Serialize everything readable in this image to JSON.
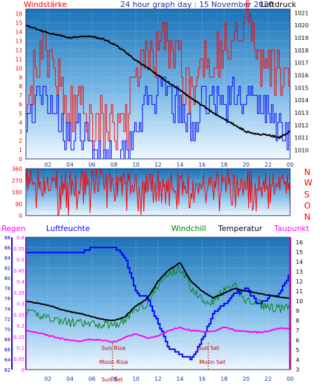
{
  "chart_data": [
    {
      "type": "line",
      "panel": "wind_pressure",
      "title": "24 hour graph day : 15 November 2020",
      "left_label": "Windstärke",
      "right_label": "Luftdruck",
      "x_ticks": [
        "02",
        "04",
        "06",
        "08",
        "10",
        "12",
        "14",
        "16",
        "18",
        "20",
        "22",
        "00"
      ],
      "y_left_ticks": [
        "0",
        "1",
        "2",
        "3",
        "4",
        "5",
        "6",
        "7",
        "8",
        "9",
        "10",
        "11",
        "12",
        "13",
        "14",
        "15",
        "16"
      ],
      "y_right_ticks": [
        "1010",
        "1011",
        "1012",
        "1013",
        "1014",
        "1015",
        "1016",
        "1017",
        "1018",
        "1019",
        "1020",
        "1021"
      ],
      "ylim_left": [
        0,
        16.5
      ],
      "ylim_right": [
        1009.3,
        1021.3
      ],
      "series": [
        {
          "name": "Luftdruck",
          "color": "#000000",
          "x": [
            0,
            1,
            2,
            3,
            4,
            5,
            6,
            7,
            8,
            9,
            10,
            11,
            12,
            13,
            14,
            15,
            16,
            17,
            18,
            19,
            20,
            21,
            22,
            23,
            24
          ],
          "values": [
            1020.0,
            1019.7,
            1019.4,
            1019.2,
            1019.0,
            1019.1,
            1019.1,
            1018.9,
            1018.5,
            1017.9,
            1017.2,
            1016.6,
            1016.0,
            1015.4,
            1014.8,
            1014.2,
            1013.6,
            1013.0,
            1012.5,
            1012.0,
            1011.5,
            1011.3,
            1011.2,
            1011.0,
            1011.5
          ]
        },
        {
          "name": "Windböen",
          "color": "#ff0000",
          "x": [
            0,
            1,
            2,
            3,
            4,
            5,
            6,
            7,
            8,
            9,
            10,
            11,
            12,
            13,
            14,
            15,
            16,
            17,
            18,
            19,
            20,
            21,
            22,
            23,
            24
          ],
          "values": [
            8,
            10,
            11,
            9,
            5,
            7,
            4,
            4,
            4,
            3,
            9,
            11,
            12,
            13,
            10,
            7,
            11,
            12,
            12,
            13,
            16,
            11,
            10,
            9,
            7
          ]
        },
        {
          "name": "Windstärke",
          "color": "#0000ff",
          "x": [
            0,
            1,
            2,
            3,
            4,
            5,
            6,
            7,
            8,
            9,
            10,
            11,
            12,
            13,
            14,
            15,
            16,
            17,
            18,
            19,
            20,
            21,
            22,
            23,
            24
          ],
          "values": [
            5,
            6,
            7,
            5,
            2,
            3,
            1,
            1,
            1,
            1,
            4,
            6,
            7,
            7,
            5,
            3,
            6,
            7,
            6,
            7,
            7,
            6,
            5,
            4,
            3
          ]
        }
      ]
    },
    {
      "type": "line",
      "panel": "wind_direction",
      "x_ticks": [
        "02",
        "04",
        "06",
        "08",
        "10",
        "12",
        "14",
        "16",
        "18",
        "20",
        "22",
        "00"
      ],
      "y_ticks": [
        "0",
        "90",
        "180",
        "270",
        "360"
      ],
      "y_right_labels": [
        "N",
        "W",
        "S",
        "O",
        "N"
      ],
      "ylim": [
        0,
        360
      ],
      "series": [
        {
          "name": "Windrichtung",
          "color": "#ff0000",
          "range": [
            0,
            360
          ]
        }
      ]
    },
    {
      "type": "line",
      "panel": "humidity_temperature",
      "labels": {
        "regen": "Regen",
        "luftfeuchte": "Luftfeuchte",
        "windchill": "Windchill",
        "temperatur": "Temperatur",
        "taupunkt": "Taupunkt"
      },
      "x_ticks": [
        "02",
        "04",
        "06",
        "08",
        "10",
        "12",
        "14",
        "16",
        "18",
        "20",
        "22",
        "00"
      ],
      "y_rain_ticks": [
        "0",
        "0.05",
        "0.1",
        "0.15",
        "0.2",
        "0.25",
        "0.3",
        "0.35",
        "0.4",
        "0.45",
        "0.5",
        "0.55",
        "0.6"
      ],
      "y_hum_ticks": [
        "62",
        "64",
        "66",
        "68",
        "70",
        "72",
        "74",
        "76",
        "78",
        "80",
        "82",
        "84",
        "86",
        "88"
      ],
      "y_temp_ticks": [
        "3",
        "4",
        "5",
        "6",
        "7",
        "8",
        "9",
        "10",
        "11",
        "12",
        "13",
        "14",
        "15",
        "16"
      ],
      "ylim_rain": [
        0,
        0.6
      ],
      "ylim_hum": [
        62,
        88
      ],
      "ylim_temp": [
        3,
        16.5
      ],
      "annotations": [
        "Sun Rise",
        "Sun Set",
        "Moon Rise",
        "Moon Set",
        "Sun Set"
      ],
      "series": [
        {
          "name": "Luftfeuchte",
          "color": "#0000ff",
          "x": [
            0,
            1,
            2,
            3,
            4,
            5,
            6,
            7,
            8,
            9,
            10,
            11,
            12,
            13,
            14,
            15,
            16,
            17,
            18,
            19,
            20,
            21,
            22,
            23,
            24
          ],
          "values": [
            85,
            85,
            85,
            85,
            85,
            85,
            86,
            86,
            86,
            84,
            77,
            76,
            71,
            66,
            65,
            64,
            68,
            73,
            75,
            77,
            78,
            75,
            76,
            77,
            81
          ]
        },
        {
          "name": "Temperatur",
          "color": "#000000",
          "x": [
            0,
            1,
            2,
            3,
            4,
            5,
            6,
            7,
            8,
            9,
            10,
            11,
            12,
            13,
            14,
            15,
            16,
            17,
            18,
            19,
            20,
            21,
            22,
            23,
            24
          ],
          "values": [
            10.0,
            9.8,
            9.6,
            9.2,
            8.9,
            8.7,
            8.4,
            8.1,
            8.0,
            8.4,
            9.5,
            10.2,
            12.0,
            13.2,
            13.9,
            12.0,
            11.0,
            10.3,
            10.8,
            11.3,
            11.0,
            10.8,
            10.6,
            10.4,
            10.3
          ]
        },
        {
          "name": "Windchill",
          "color": "#008000",
          "x": [
            0,
            1,
            2,
            3,
            4,
            5,
            6,
            7,
            8,
            9,
            10,
            11,
            12,
            13,
            14,
            15,
            16,
            17,
            18,
            19,
            20,
            21,
            22,
            23,
            24
          ],
          "values": [
            8.8,
            8.6,
            8.4,
            8.0,
            7.8,
            7.7,
            7.6,
            7.6,
            7.6,
            8.0,
            9.2,
            9.8,
            11.5,
            12.8,
            13.4,
            11.4,
            10.2,
            9.9,
            11.0,
            11.5,
            10.0,
            9.8,
            9.4,
            9.2,
            9.3
          ]
        },
        {
          "name": "Taupunkt",
          "color": "#ff00ff",
          "x": [
            0,
            1,
            2,
            3,
            4,
            5,
            6,
            7,
            8,
            9,
            10,
            11,
            12,
            13,
            14,
            15,
            16,
            17,
            18,
            19,
            20,
            21,
            22,
            23,
            24
          ],
          "values": [
            7.0,
            6.8,
            6.5,
            6.2,
            6.0,
            5.9,
            6.1,
            6.0,
            5.8,
            6.3,
            6.6,
            6.2,
            6.4,
            7.0,
            7.3,
            7.0,
            6.9,
            6.9,
            7.3,
            7.0,
            6.9,
            6.8,
            6.9,
            7.2,
            7.2
          ]
        }
      ]
    }
  ]
}
